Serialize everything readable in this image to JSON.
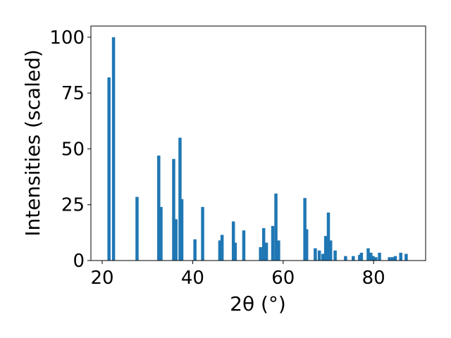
{
  "chart_data": {
    "type": "bar",
    "xlabel": "2θ (°)",
    "ylabel": "Intensities (scaled)",
    "xlim": [
      17.5,
      91.5
    ],
    "ylim": [
      0,
      105
    ],
    "xticks": [
      20,
      40,
      60,
      80
    ],
    "yticks": [
      0,
      25,
      50,
      75,
      100
    ],
    "grid": false,
    "color": "#1f77b4",
    "bar_width_deg": 0.7,
    "x": [
      21.5,
      22.5,
      27.7,
      32.5,
      33.0,
      35.8,
      36.3,
      37.2,
      37.6,
      40.5,
      42.2,
      46.0,
      46.5,
      49.0,
      49.4,
      51.3,
      55.0,
      55.7,
      56.3,
      57.7,
      58.4,
      59.0,
      64.8,
      65.2,
      67.1,
      68.0,
      68.8,
      69.4,
      70.0,
      70.5,
      71.5,
      73.8,
      75.5,
      76.9,
      77.3,
      78.8,
      79.4,
      79.9,
      80.5,
      81.3,
      83.5,
      84.2,
      84.8,
      86.0,
      87.2
    ],
    "y": [
      82,
      100,
      28.5,
      47,
      24,
      45.5,
      18.5,
      55,
      27.5,
      9.5,
      24,
      9,
      11.5,
      17.5,
      8,
      13.5,
      6,
      14.5,
      8,
      15.5,
      30,
      9,
      28,
      14,
      5.5,
      4.5,
      3,
      11,
      21.5,
      9,
      4.5,
      2,
      2,
      2.5,
      3.5,
      5.5,
      3.5,
      2,
      1.5,
      3.5,
      1.5,
      1.5,
      2,
      3.5,
      3
    ]
  }
}
